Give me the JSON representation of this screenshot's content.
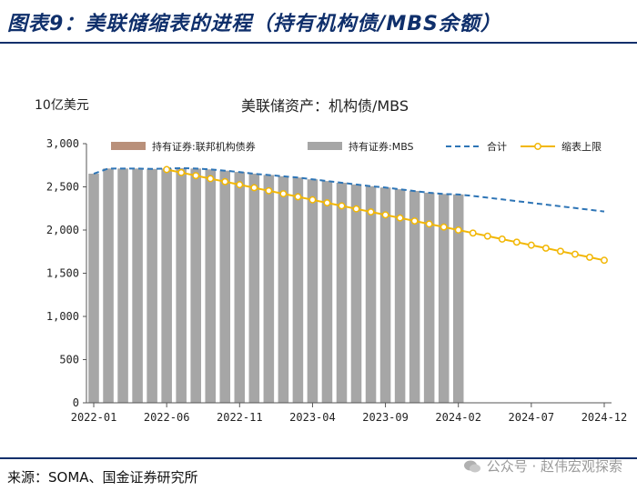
{
  "figure": {
    "title": "图表9：美联储缩表的进程（持有机构债/MBS余额）",
    "source": "来源：SOMA、国金证券研究所",
    "watermark": "公众号 · 赵伟宏观探索"
  },
  "colors": {
    "title": "#0f2f6b",
    "bar_mbs": "#a6a6a6",
    "bar_agency": "#b9907a",
    "total_line": "#2e75b6",
    "cap_line": "#f2b705"
  },
  "chart_data": {
    "type": "bar",
    "title": "美联储资产：机构债/MBS",
    "ylabel": "10亿美元",
    "ylim": [
      0,
      3000
    ],
    "yticks": [
      0,
      500,
      1000,
      1500,
      2000,
      2500,
      3000
    ],
    "ytick_labels": [
      "0",
      "500",
      "1,000",
      "1,500",
      "2,000",
      "2,500",
      "3,000"
    ],
    "month_count": 36,
    "xtick_indices": [
      0,
      5,
      10,
      15,
      20,
      25,
      30,
      35
    ],
    "xtick_labels": [
      "2022-01",
      "2022-06",
      "2022-11",
      "2023-04",
      "2023-09",
      "2024-02",
      "2024-07",
      "2024-12"
    ],
    "legend": [
      "持有证券:联邦机构债券",
      "持有证券:MBS",
      "合计",
      "缩表上限"
    ],
    "series": [
      {
        "name": "持有证券:联邦机构债券",
        "kind": "bar",
        "values": [
          2.35,
          2.35,
          2.35,
          2.35,
          2.35,
          2.35,
          2.35,
          2.35,
          2.35,
          2.35,
          2.35,
          2.35,
          2.35,
          2.35,
          2.35,
          2.35,
          2.35,
          2.35,
          2.35,
          2.35,
          2.35,
          2.35,
          2.35,
          2.35,
          2.35,
          2.35
        ]
      },
      {
        "name": "持有证券:MBS",
        "kind": "bar",
        "values": [
          2650,
          2710,
          2710,
          2710,
          2705,
          2710,
          2715,
          2710,
          2700,
          2685,
          2670,
          2650,
          2635,
          2620,
          2605,
          2585,
          2565,
          2545,
          2525,
          2505,
          2490,
          2470,
          2450,
          2430,
          2415,
          2410
        ]
      },
      {
        "name": "合计",
        "kind": "line",
        "start_index": 0,
        "values": [
          2652,
          2712,
          2712,
          2712,
          2707,
          2712,
          2717,
          2712,
          2702,
          2687,
          2672,
          2652,
          2637,
          2622,
          2607,
          2587,
          2567,
          2547,
          2527,
          2507,
          2492,
          2472,
          2452,
          2432,
          2417,
          2412,
          2395,
          2375,
          2355,
          2335,
          2315,
          2295,
          2275,
          2255,
          2235,
          2215
        ]
      },
      {
        "name": "缩表上限",
        "kind": "line",
        "start_index": 5,
        "values": [
          2700,
          2665,
          2630,
          2595,
          2560,
          2525,
          2490,
          2455,
          2420,
          2385,
          2350,
          2315,
          2280,
          2245,
          2210,
          2175,
          2140,
          2105,
          2070,
          2035,
          2000,
          1965,
          1930,
          1895,
          1860,
          1825,
          1790,
          1755,
          1720,
          1685,
          1650
        ]
      }
    ]
  }
}
